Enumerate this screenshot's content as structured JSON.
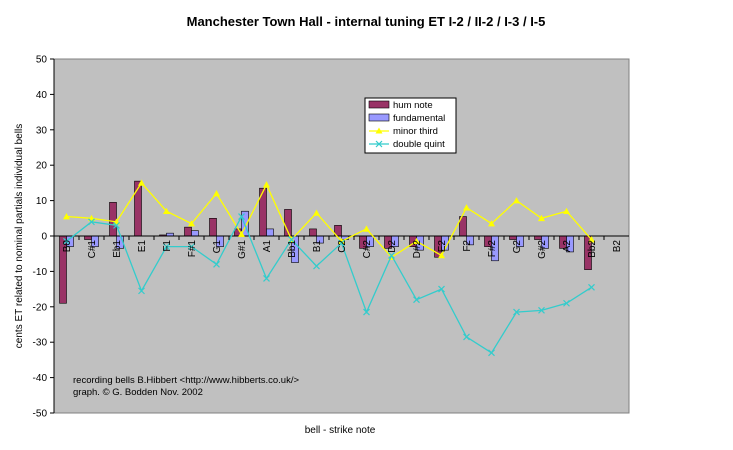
{
  "chart_data": {
    "type": "bar",
    "title": "Manchester Town Hall - internal tuning ET I-2 / II-2 / I-3 / I-5",
    "xlabel": "bell - strike note",
    "ylabel": "cents ET related to nominal partials individual bells",
    "ylim": [
      -50,
      50
    ],
    "yticks": [
      50,
      40,
      30,
      20,
      10,
      0,
      -10,
      -20,
      -30,
      -40,
      -50
    ],
    "categories": [
      "B0",
      "C#1",
      "Eb1",
      "E1",
      "F1",
      "F#1",
      "G1",
      "G#1",
      "A1",
      "Bb1",
      "B1",
      "C2",
      "C#2",
      "D2",
      "D#2",
      "E2",
      "F2",
      "F#2",
      "G2",
      "G#2",
      "A2",
      "Bb2",
      "B2"
    ],
    "series": [
      {
        "name": "hum note",
        "kind": "bar",
        "color": "#993366",
        "values": [
          -19,
          -1,
          9.5,
          15.5,
          0.3,
          2.5,
          5,
          2,
          13.5,
          7.5,
          2,
          3,
          -3.5,
          -3.5,
          -3,
          -6,
          5.5,
          -3,
          -1,
          -1,
          -3.5,
          -9.5,
          null
        ]
      },
      {
        "name": "fundamental",
        "kind": "bar",
        "color": "#9999ff",
        "values": [
          -3,
          -3,
          -3.5,
          null,
          0.8,
          1.5,
          -3,
          7,
          2,
          -7.5,
          -2,
          -1,
          -3,
          -3,
          -4,
          -4,
          -2.5,
          -7,
          -3,
          -3.5,
          -4.5,
          null,
          null
        ]
      },
      {
        "name": "minor third",
        "kind": "line",
        "color": "#ffff00",
        "values": [
          5.5,
          5,
          4,
          15,
          7,
          3.5,
          12,
          0.5,
          14.5,
          -1,
          6.5,
          -1.5,
          2,
          -6,
          -1.5,
          -5.5,
          8,
          3.5,
          10,
          5,
          7,
          -1,
          null
        ]
      },
      {
        "name": "double quint",
        "kind": "line",
        "color": "#33cccc",
        "values": [
          -1.5,
          4,
          3,
          -15.5,
          -3,
          -3,
          -8,
          5.5,
          -12,
          -1,
          -8.5,
          -2,
          -21.5,
          -5.5,
          -18,
          -15,
          -28.5,
          -33,
          -21.5,
          -21,
          -19,
          -14.5,
          null
        ]
      }
    ],
    "legend_position": "top-right inside plot",
    "grid": false,
    "plot_background": "#c0c0c0",
    "annotation": [
      "recording bells B.Hibbert <http://www.hibberts.co.uk/>",
      "graph. © G. Bodden Nov. 2002"
    ]
  }
}
